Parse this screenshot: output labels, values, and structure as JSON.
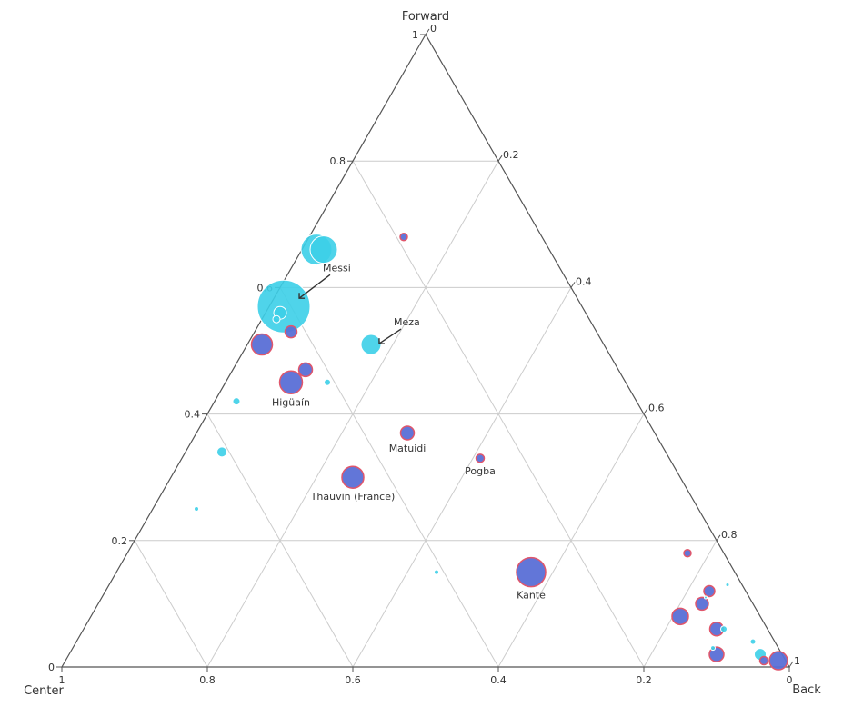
{
  "chart_data": {
    "type": "scatter",
    "subtype": "ternary",
    "axes": {
      "top": "Forward",
      "left": "Center",
      "right": "Back"
    },
    "ticks": [
      "0",
      "0.2",
      "0.4",
      "0.6",
      "0.8",
      "1"
    ],
    "grid": true,
    "colors": {
      "group_a_fill": "#3ccfe8",
      "group_a_stroke": "#ffffff",
      "group_b_fill": "#5a6fd6",
      "group_b_stroke": "#e0566b",
      "axis": "#555555",
      "grid": "#cccccc"
    },
    "points": [
      {
        "forward": 0.66,
        "center": 0.31,
        "back": 0.03,
        "size": 30,
        "group": "a"
      },
      {
        "forward": 0.66,
        "center": 0.32,
        "back": 0.02,
        "size": 34,
        "group": "a"
      },
      {
        "forward": 0.57,
        "center": 0.41,
        "back": 0.02,
        "size": 58,
        "group": "a",
        "label": "Messi"
      },
      {
        "forward": 0.56,
        "center": 0.42,
        "back": 0.02,
        "size": 14,
        "group": "a"
      },
      {
        "forward": 0.55,
        "center": 0.43,
        "back": 0.02,
        "size": 8,
        "group": "a"
      },
      {
        "forward": 0.51,
        "center": 0.32,
        "back": 0.17,
        "size": 22,
        "group": "a",
        "label": "Meza"
      },
      {
        "forward": 0.45,
        "center": 0.41,
        "back": 0.14,
        "size": 7,
        "group": "a"
      },
      {
        "forward": 0.42,
        "center": 0.55,
        "back": 0.03,
        "size": 8,
        "group": "a"
      },
      {
        "forward": 0.34,
        "center": 0.61,
        "back": 0.05,
        "size": 11,
        "group": "a"
      },
      {
        "forward": 0.25,
        "center": 0.69,
        "back": 0.06,
        "size": 5,
        "group": "a"
      },
      {
        "forward": 0.15,
        "center": 0.41,
        "back": 0.44,
        "size": 5,
        "group": "a"
      },
      {
        "forward": 0.13,
        "center": 0.02,
        "back": 0.85,
        "size": 4,
        "group": "a"
      },
      {
        "forward": 0.11,
        "center": 0.06,
        "back": 0.83,
        "size": 3,
        "group": "a"
      },
      {
        "forward": 0.06,
        "center": 0.06,
        "back": 0.88,
        "size": 7,
        "group": "a"
      },
      {
        "forward": 0.04,
        "center": 0.03,
        "back": 0.93,
        "size": 6,
        "group": "a"
      },
      {
        "forward": 0.03,
        "center": 0.09,
        "back": 0.88,
        "size": 5,
        "group": "a"
      },
      {
        "forward": 0.02,
        "center": 0.03,
        "back": 0.95,
        "size": 13,
        "group": "a"
      },
      {
        "forward": 0.68,
        "center": 0.19,
        "back": 0.13,
        "size": 8,
        "group": "b"
      },
      {
        "forward": 0.53,
        "center": 0.42,
        "back": 0.05,
        "size": 13,
        "group": "b"
      },
      {
        "forward": 0.51,
        "center": 0.47,
        "back": 0.02,
        "size": 23,
        "group": "b"
      },
      {
        "forward": 0.47,
        "center": 0.43,
        "back": 0.1,
        "size": 15,
        "group": "b"
      },
      {
        "forward": 0.45,
        "center": 0.46,
        "back": 0.09,
        "size": 25,
        "group": "b",
        "label": "Higüaín"
      },
      {
        "forward": 0.37,
        "center": 0.34,
        "back": 0.29,
        "size": 15,
        "group": "b",
        "label": "Matuidi"
      },
      {
        "forward": 0.33,
        "center": 0.26,
        "back": 0.41,
        "size": 9,
        "group": "b",
        "label": "Pogba"
      },
      {
        "forward": 0.3,
        "center": 0.45,
        "back": 0.25,
        "size": 24,
        "group": "b",
        "label": "Thauvin (France)"
      },
      {
        "forward": 0.18,
        "center": 0.05,
        "back": 0.77,
        "size": 8,
        "group": "b"
      },
      {
        "forward": 0.15,
        "center": 0.28,
        "back": 0.57,
        "size": 32,
        "group": "b",
        "label": "Kante"
      },
      {
        "forward": 0.12,
        "center": 0.05,
        "back": 0.83,
        "size": 12,
        "group": "b"
      },
      {
        "forward": 0.1,
        "center": 0.07,
        "back": 0.83,
        "size": 14,
        "group": "b"
      },
      {
        "forward": 0.08,
        "center": 0.11,
        "back": 0.81,
        "size": 18,
        "group": "b"
      },
      {
        "forward": 0.06,
        "center": 0.07,
        "back": 0.87,
        "size": 15,
        "group": "b"
      },
      {
        "forward": 0.02,
        "center": 0.09,
        "back": 0.89,
        "size": 16,
        "group": "b"
      },
      {
        "forward": 0.01,
        "center": 0.03,
        "back": 0.96,
        "size": 9,
        "group": "b"
      },
      {
        "forward": 0.01,
        "center": 0.01,
        "back": 0.98,
        "size": 20,
        "group": "b"
      }
    ]
  }
}
